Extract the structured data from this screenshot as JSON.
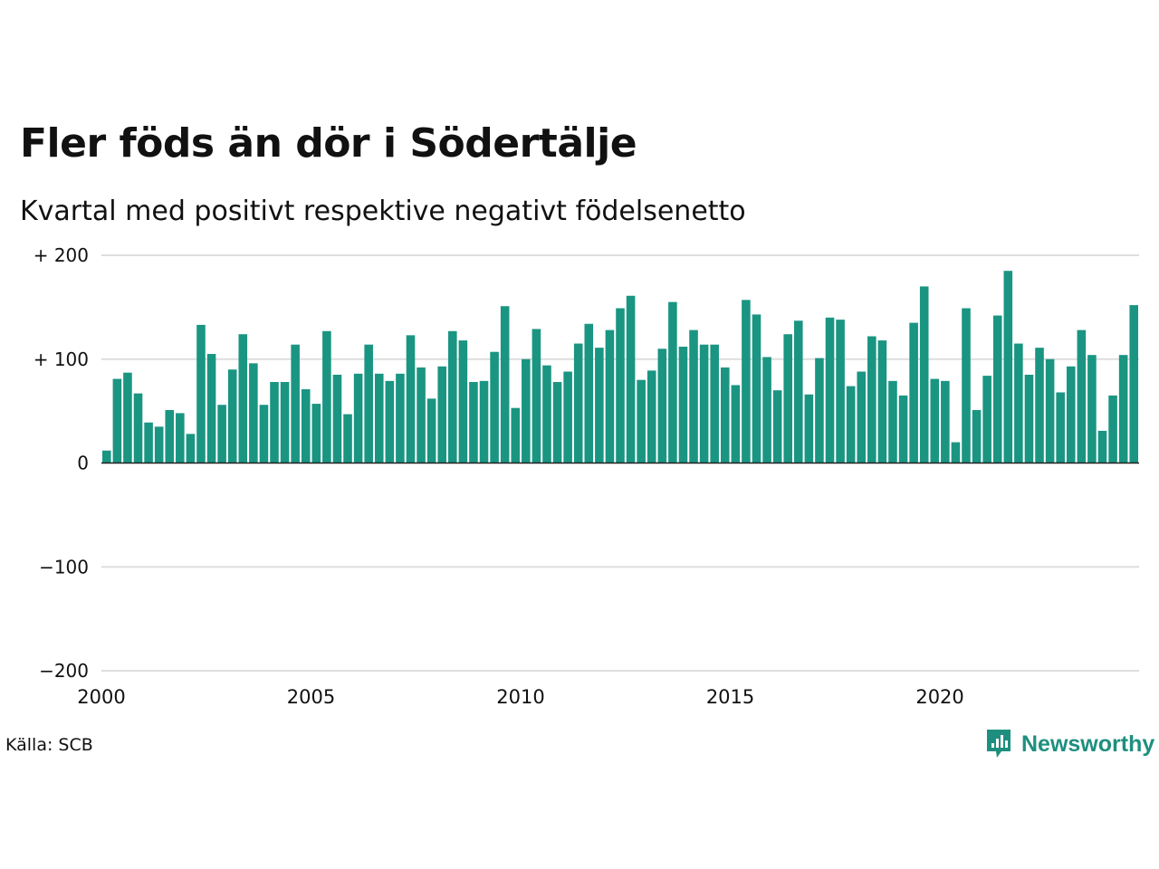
{
  "title": "Fler föds än dör i Södertälje",
  "subtitle": "Kvartal med positivt respektive negativt födelsenetto",
  "source": "Källa: SCB",
  "brand": {
    "name": "Newsworthy",
    "color": "#1e8f7f"
  },
  "colors": {
    "bar": "#1a9582",
    "grid": "#dedede",
    "zero_line": "#222222"
  },
  "chart_data": {
    "type": "bar",
    "series": [
      {
        "values": [
          12,
          81,
          87,
          67,
          39,
          35,
          51,
          48,
          28,
          133,
          105,
          56,
          90,
          124,
          96,
          56,
          78,
          78,
          114,
          71,
          57,
          127,
          85,
          47,
          86,
          114,
          86,
          79,
          86,
          123,
          92,
          62,
          93,
          127,
          118,
          78,
          79,
          107,
          151,
          53,
          100,
          129,
          94,
          78,
          88,
          115,
          134,
          111,
          128,
          149,
          161,
          80,
          89,
          110,
          155,
          112,
          128,
          114,
          114,
          92,
          75,
          157,
          143,
          102,
          70,
          124,
          137,
          66,
          101,
          140,
          138,
          74,
          88,
          122,
          118,
          79,
          65,
          135,
          170,
          81,
          79,
          20,
          149,
          51,
          84,
          142,
          185,
          115,
          85,
          111,
          100,
          68,
          93,
          128,
          104,
          31,
          65,
          104,
          152
        ]
      }
    ],
    "x_start": 2000,
    "periods_per_year": 4,
    "xticks": [
      2000,
      2005,
      2010,
      2015,
      2020
    ],
    "yticks": [
      {
        "value": 200,
        "label": "+ 200"
      },
      {
        "value": 100,
        "label": "+ 100"
      },
      {
        "value": 0,
        "label": "0"
      },
      {
        "value": -100,
        "label": "−100"
      },
      {
        "value": -200,
        "label": "−200"
      }
    ],
    "ylim": [
      -200,
      200
    ],
    "grid": true
  }
}
